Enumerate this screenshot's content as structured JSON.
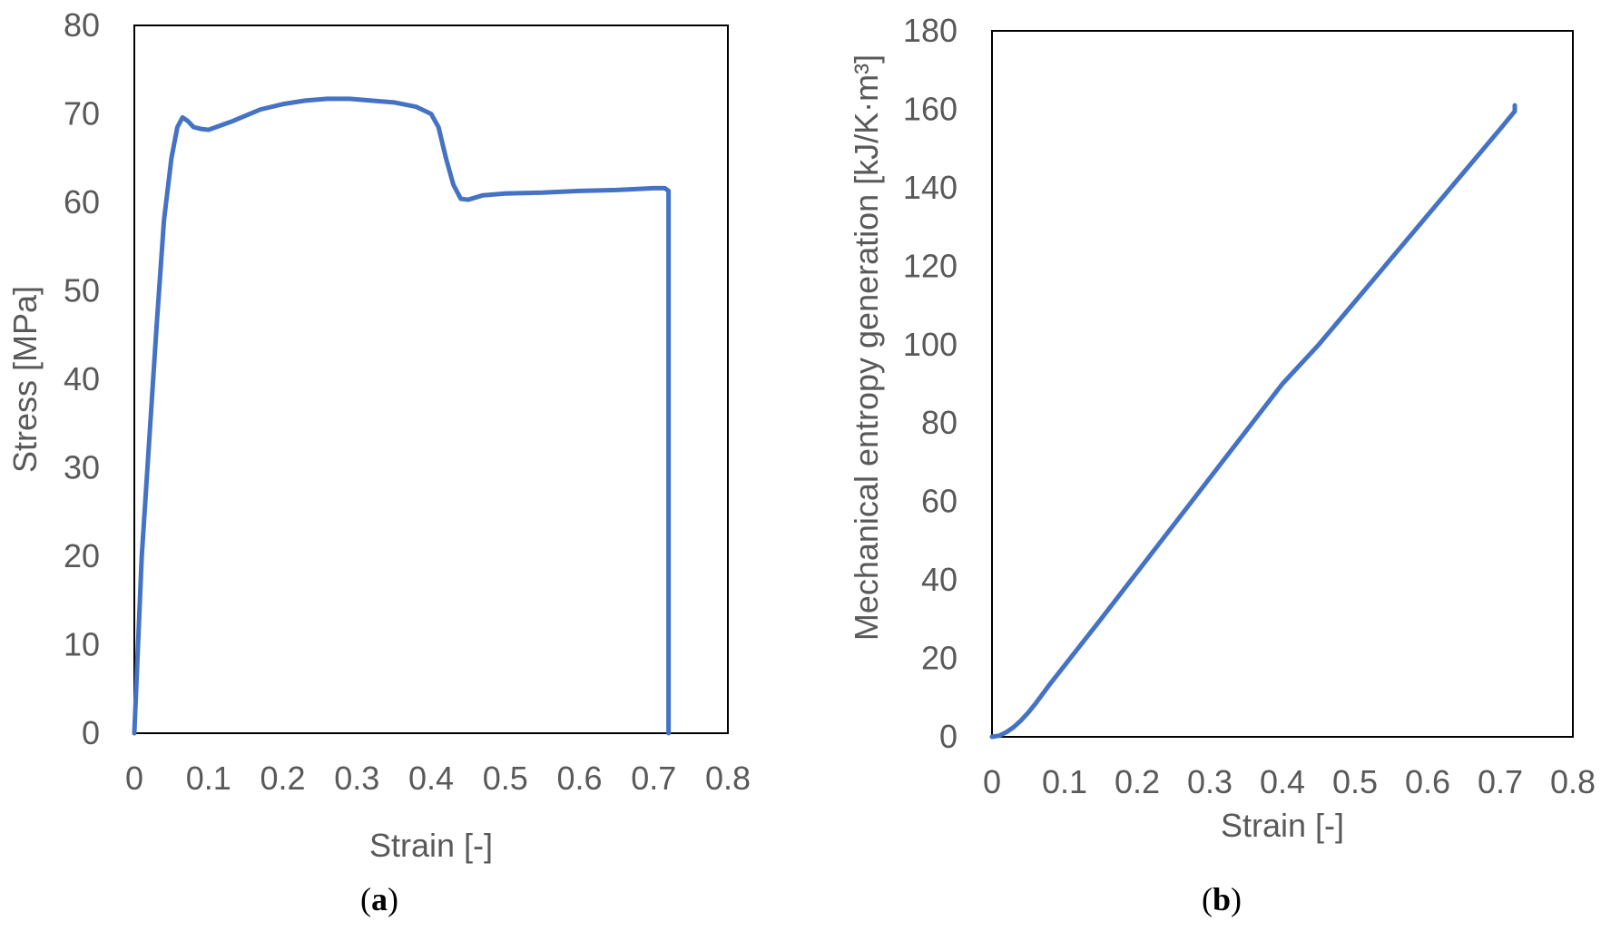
{
  "colors": {
    "series": "#4472C4",
    "text": "#595959",
    "frame": "#000000"
  },
  "chart_data": [
    {
      "type": "line",
      "panel_label": "a",
      "title": "",
      "xlabel": "Strain [-]",
      "ylabel": "Stress [MPa]",
      "xlim": [
        0,
        0.8
      ],
      "ylim": [
        0,
        80
      ],
      "xticks": [
        0,
        0.1,
        0.2,
        0.3,
        0.4,
        0.5,
        0.6,
        0.7,
        0.8
      ],
      "yticks": [
        0,
        10,
        20,
        30,
        40,
        50,
        60,
        70,
        80
      ],
      "grid": false,
      "legend": "none",
      "series": [
        {
          "x": [
            0,
            0.01,
            0.02,
            0.03,
            0.04,
            0.05,
            0.058,
            0.065,
            0.072,
            0.08,
            0.09,
            0.1,
            0.11,
            0.13,
            0.15,
            0.17,
            0.2,
            0.23,
            0.26,
            0.29,
            0.32,
            0.35,
            0.38,
            0.4,
            0.41,
            0.42,
            0.43,
            0.44,
            0.45,
            0.47,
            0.5,
            0.55,
            0.6,
            0.65,
            0.7,
            0.715,
            0.72,
            0.72
          ],
          "y": [
            0,
            20,
            33,
            46,
            58,
            65,
            68.5,
            69.6,
            69.2,
            68.5,
            68.3,
            68.2,
            68.5,
            69.1,
            69.8,
            70.5,
            71.1,
            71.5,
            71.7,
            71.7,
            71.5,
            71.3,
            70.8,
            70,
            68.5,
            65,
            62,
            60.4,
            60.3,
            60.8,
            61.0,
            61.1,
            61.3,
            61.4,
            61.6,
            61.6,
            61.3,
            0
          ]
        }
      ]
    },
    {
      "type": "line",
      "panel_label": "b",
      "title": "",
      "xlabel": "Strain [-]",
      "ylabel": "Mechanical entropy generation [kJ/K·m³]",
      "xlim": [
        0,
        0.8
      ],
      "ylim": [
        0,
        180
      ],
      "xticks": [
        0,
        0.1,
        0.2,
        0.3,
        0.4,
        0.5,
        0.6,
        0.7,
        0.8
      ],
      "yticks": [
        0,
        20,
        40,
        60,
        80,
        100,
        120,
        140,
        160,
        180
      ],
      "grid": false,
      "legend": "none",
      "series": [
        {
          "x": [
            0,
            0.01,
            0.02,
            0.03,
            0.04,
            0.05,
            0.06,
            0.08,
            0.1,
            0.15,
            0.2,
            0.25,
            0.3,
            0.35,
            0.4,
            0.43,
            0.45,
            0.5,
            0.55,
            0.6,
            0.65,
            0.7,
            0.72,
            0.72
          ],
          "y": [
            0,
            0.3,
            1.2,
            2.5,
            4.2,
            6.2,
            8.5,
            13.5,
            18.2,
            30,
            42,
            54,
            66,
            78,
            90,
            96,
            100,
            111,
            122,
            133,
            144,
            155,
            159.5,
            161
          ]
        }
      ]
    }
  ]
}
